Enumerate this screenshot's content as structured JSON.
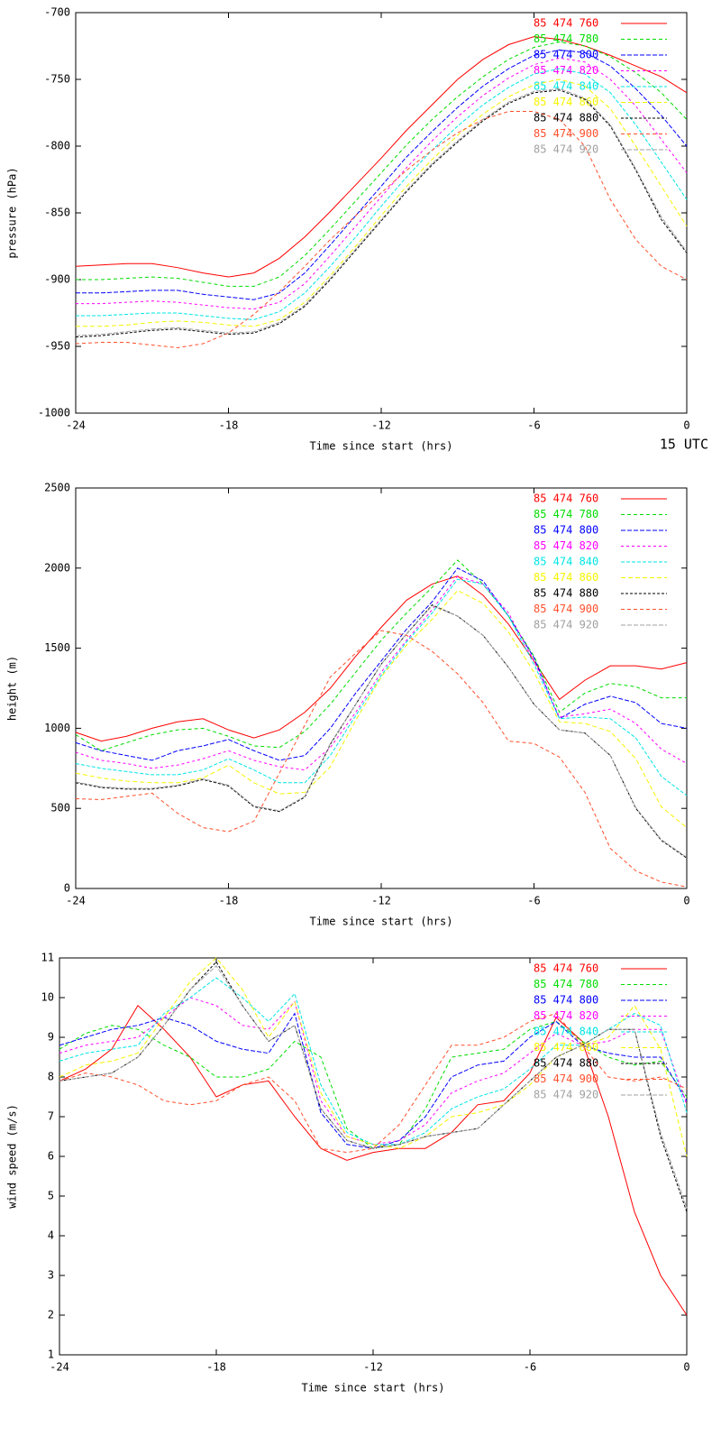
{
  "chart_data": [
    {
      "type": "line",
      "x_label": "Time since start (hrs)",
      "y_label": "pressure (hPa)",
      "annotation": "15 UTC",
      "legend": "top right",
      "xlim": [
        -24,
        0
      ],
      "ylim": [
        -1000,
        -700
      ],
      "xticks": [
        -24,
        -18,
        -12,
        -6,
        0
      ],
      "yticks": [
        -1000,
        -950,
        -900,
        -850,
        -800,
        -750,
        -700
      ],
      "x": [
        -24,
        -23,
        -22,
        -21,
        -20,
        -19,
        -18,
        -17,
        -16,
        -15,
        -14,
        -13,
        -12,
        -11,
        -10,
        -9,
        -8,
        -7,
        -6,
        -5,
        -4,
        -3,
        -2,
        -1,
        0
      ],
      "series": [
        {
          "name": "85 474 760",
          "color": "#ff0000",
          "values": [
            -890,
            -889,
            -888,
            -888,
            -891,
            -895,
            -898,
            -895,
            -884,
            -868,
            -849,
            -829,
            -809,
            -788,
            -769,
            -750,
            -735,
            -724,
            -718,
            -720,
            -725,
            -732,
            -740,
            -748,
            -760
          ]
        },
        {
          "name": "85 474 780",
          "color": "#00dd00",
          "values": [
            -900,
            -900,
            -899,
            -898,
            -899,
            -902,
            -905,
            -905,
            -898,
            -882,
            -862,
            -841,
            -820,
            -799,
            -780,
            -763,
            -748,
            -735,
            -726,
            -722,
            -725,
            -733,
            -745,
            -760,
            -780
          ]
        },
        {
          "name": "85 474 800",
          "color": "#0000ff",
          "values": [
            -910,
            -910,
            -909,
            -908,
            -908,
            -911,
            -913,
            -915,
            -910,
            -895,
            -874,
            -852,
            -830,
            -808,
            -789,
            -771,
            -755,
            -742,
            -732,
            -728,
            -730,
            -740,
            -757,
            -777,
            -800
          ]
        },
        {
          "name": "85 474 820",
          "color": "#ff00ff",
          "values": [
            -918,
            -918,
            -917,
            -916,
            -917,
            -919,
            -921,
            -922,
            -917,
            -903,
            -882,
            -860,
            -838,
            -816,
            -796,
            -778,
            -762,
            -749,
            -739,
            -734,
            -737,
            -750,
            -770,
            -795,
            -820
          ]
        },
        {
          "name": "85 474 840",
          "color": "#00e5e5",
          "values": [
            -927,
            -927,
            -926,
            -925,
            -925,
            -927,
            -929,
            -930,
            -924,
            -910,
            -890,
            -868,
            -845,
            -823,
            -803,
            -785,
            -769,
            -756,
            -746,
            -742,
            -746,
            -760,
            -784,
            -812,
            -840
          ]
        },
        {
          "name": "85 474 860",
          "color": "#f5f500",
          "values": [
            -935,
            -935,
            -934,
            -932,
            -931,
            -932,
            -934,
            -935,
            -930,
            -917,
            -897,
            -875,
            -852,
            -830,
            -810,
            -792,
            -776,
            -763,
            -754,
            -750,
            -755,
            -772,
            -800,
            -830,
            -860
          ]
        },
        {
          "name": "85 474 880",
          "color": "#000000",
          "values": [
            -943,
            -942,
            -940,
            -938,
            -937,
            -939,
            -941,
            -940,
            -933,
            -920,
            -900,
            -878,
            -856,
            -834,
            -814,
            -797,
            -781,
            -768,
            -760,
            -758,
            -765,
            -785,
            -818,
            -855,
            -880
          ]
        },
        {
          "name": "85 474 900",
          "color": "#ff4f2b",
          "values": [
            -948,
            -947,
            -947,
            -949,
            -951,
            -948,
            -940,
            -926,
            -909,
            -890,
            -870,
            -852,
            -835,
            -818,
            -803,
            -790,
            -780,
            -774,
            -774,
            -780,
            -800,
            -840,
            -870,
            -890,
            -900
          ]
        },
        {
          "name": "85 474 920",
          "color": "#a0a0a0",
          "values": [
            -942,
            -941,
            -939,
            -937,
            -936,
            -938,
            -940,
            -939,
            -932,
            -919,
            -899,
            -877,
            -855,
            -833,
            -813,
            -796,
            -780,
            -767,
            -759,
            -757,
            -764,
            -784,
            -817,
            -853,
            -879
          ]
        }
      ]
    },
    {
      "type": "line",
      "x_label": "Time since start (hrs)",
      "y_label": "height (m)",
      "legend": "top right",
      "xlim": [
        -24,
        0
      ],
      "ylim": [
        0,
        2500
      ],
      "xticks": [
        -24,
        -18,
        -12,
        -6,
        0
      ],
      "yticks": [
        0,
        500,
        1000,
        1500,
        2000,
        2500
      ],
      "x": [
        -24,
        -23,
        -22,
        -21,
        -20,
        -19,
        -18,
        -17,
        -16,
        -15,
        -14,
        -13,
        -12,
        -11,
        -10,
        -9,
        -8,
        -7,
        -6,
        -5,
        -4,
        -3,
        -2,
        -1,
        0
      ],
      "series": [
        {
          "name": "85 474 760",
          "color": "#ff0000",
          "values": [
            975,
            920,
            950,
            1000,
            1040,
            1060,
            990,
            940,
            990,
            1100,
            1250,
            1450,
            1630,
            1800,
            1900,
            1950,
            1830,
            1650,
            1420,
            1180,
            1300,
            1390,
            1390,
            1370,
            1410
          ]
        },
        {
          "name": "85 474 780",
          "color": "#00dd00",
          "values": [
            960,
            860,
            910,
            960,
            990,
            1000,
            950,
            890,
            880,
            980,
            1150,
            1350,
            1550,
            1720,
            1880,
            2050,
            1900,
            1700,
            1450,
            1100,
            1220,
            1280,
            1260,
            1190,
            1190
          ]
        },
        {
          "name": "85 474 800",
          "color": "#0000ff",
          "values": [
            910,
            860,
            830,
            800,
            860,
            890,
            930,
            860,
            800,
            830,
            1000,
            1220,
            1420,
            1620,
            1790,
            2000,
            1920,
            1700,
            1440,
            1060,
            1150,
            1200,
            1160,
            1030,
            1000
          ]
        },
        {
          "name": "85 474 820",
          "color": "#ff00ff",
          "values": [
            850,
            800,
            780,
            750,
            770,
            810,
            860,
            800,
            760,
            740,
            880,
            1100,
            1350,
            1550,
            1740,
            1950,
            1900,
            1720,
            1420,
            1070,
            1090,
            1120,
            1030,
            870,
            780
          ]
        },
        {
          "name": "85 474 840",
          "color": "#00e5e5",
          "values": [
            780,
            750,
            730,
            710,
            710,
            740,
            810,
            740,
            660,
            660,
            830,
            1080,
            1330,
            1540,
            1720,
            1930,
            1900,
            1700,
            1400,
            1060,
            1070,
            1060,
            940,
            700,
            580
          ]
        },
        {
          "name": "85 474 860",
          "color": "#f5f500",
          "values": [
            720,
            690,
            670,
            660,
            660,
            690,
            770,
            660,
            590,
            600,
            760,
            1050,
            1320,
            1520,
            1680,
            1860,
            1780,
            1600,
            1350,
            1040,
            1030,
            980,
            810,
            510,
            380
          ]
        },
        {
          "name": "85 474 880",
          "color": "#000000",
          "values": [
            660,
            630,
            620,
            620,
            640,
            680,
            640,
            510,
            480,
            570,
            900,
            1150,
            1400,
            1590,
            1770,
            1700,
            1580,
            1380,
            1150,
            990,
            970,
            830,
            500,
            300,
            190
          ]
        },
        {
          "name": "85 474 900",
          "color": "#ff4f2b",
          "values": [
            560,
            555,
            575,
            595,
            470,
            380,
            355,
            420,
            720,
            1020,
            1320,
            1470,
            1610,
            1580,
            1480,
            1340,
            1160,
            920,
            905,
            820,
            600,
            250,
            110,
            40,
            10
          ]
        },
        {
          "name": "85 474 920",
          "color": "#a0a0a0",
          "values": [
            665,
            635,
            625,
            625,
            645,
            685,
            645,
            515,
            485,
            575,
            905,
            1150,
            1400,
            1590,
            1765,
            1700,
            1580,
            1380,
            1150,
            990,
            970,
            830,
            505,
            305,
            195
          ]
        }
      ]
    },
    {
      "type": "line",
      "x_label": "Time since start (hrs)",
      "y_label": "wind speed (m/s)",
      "legend": "top right",
      "xlim": [
        -24,
        0
      ],
      "ylim": [
        1,
        11
      ],
      "xticks": [
        -24,
        -18,
        -12,
        -6,
        0
      ],
      "yticks": [
        1,
        2,
        3,
        4,
        5,
        6,
        7,
        8,
        9,
        10,
        11
      ],
      "x": [
        -24,
        -23,
        -22,
        -21,
        -20,
        -19,
        -18,
        -17,
        -16,
        -15,
        -14,
        -13,
        -12,
        -11,
        -10,
        -9,
        -8,
        -7,
        -6,
        -5,
        -4,
        -3,
        -2,
        -1,
        0
      ],
      "series": [
        {
          "name": "85 474 760",
          "color": "#ff0000",
          "values": [
            7.9,
            8.2,
            8.7,
            9.8,
            9.2,
            8.5,
            7.5,
            7.8,
            7.9,
            7.0,
            6.2,
            5.9,
            6.1,
            6.2,
            6.2,
            6.6,
            7.3,
            7.4,
            8.1,
            9.5,
            8.9,
            7.0,
            4.6,
            3.0,
            2.0
          ]
        },
        {
          "name": "85 474 780",
          "color": "#00dd00",
          "values": [
            8.7,
            9.1,
            9.3,
            9.2,
            8.8,
            8.5,
            8.0,
            8.0,
            8.2,
            8.9,
            8.5,
            6.7,
            6.2,
            6.3,
            7.2,
            8.5,
            8.6,
            8.7,
            9.2,
            9.4,
            8.9,
            8.5,
            8.3,
            8.4,
            7.5
          ]
        },
        {
          "name": "85 474 800",
          "color": "#0000ff",
          "values": [
            8.8,
            9.0,
            9.2,
            9.3,
            9.5,
            9.3,
            8.9,
            8.7,
            8.6,
            9.6,
            7.1,
            6.3,
            6.2,
            6.4,
            7.0,
            8.0,
            8.3,
            8.4,
            9.0,
            9.4,
            8.8,
            8.6,
            8.5,
            8.5,
            7.4
          ]
        },
        {
          "name": "85 474 820",
          "color": "#ff00ff",
          "values": [
            8.6,
            8.8,
            8.9,
            9.0,
            9.5,
            10.0,
            9.8,
            9.3,
            9.2,
            9.9,
            7.4,
            6.5,
            6.3,
            6.4,
            6.8,
            7.6,
            7.9,
            8.1,
            8.6,
            9.1,
            8.8,
            8.9,
            9.2,
            9.2,
            7.3
          ]
        },
        {
          "name": "85 474 840",
          "color": "#00e5e5",
          "values": [
            8.4,
            8.6,
            8.7,
            8.8,
            9.6,
            10.0,
            10.5,
            10.0,
            9.4,
            10.1,
            7.8,
            6.6,
            6.3,
            6.3,
            6.6,
            7.2,
            7.5,
            7.7,
            8.2,
            8.8,
            8.8,
            9.2,
            9.6,
            9.3,
            7.1
          ]
        },
        {
          "name": "85 474 860",
          "color": "#f5f500",
          "values": [
            8.0,
            8.3,
            8.4,
            8.6,
            9.5,
            10.4,
            11.0,
            10.2,
            9.0,
            9.9,
            7.6,
            6.5,
            6.3,
            6.2,
            6.5,
            7.0,
            7.1,
            7.3,
            7.8,
            8.5,
            8.8,
            9.0,
            9.8,
            8.7,
            6.0
          ]
        },
        {
          "name": "85 474 880",
          "color": "#000000",
          "values": [
            7.9,
            8.0,
            8.1,
            8.5,
            9.3,
            10.2,
            10.9,
            9.8,
            8.9,
            9.3,
            7.2,
            6.4,
            6.2,
            6.3,
            6.5,
            6.6,
            6.7,
            7.3,
            7.9,
            8.5,
            8.8,
            9.2,
            9.2,
            6.5,
            4.6
          ]
        },
        {
          "name": "85 474 900",
          "color": "#ff4f2b",
          "values": [
            7.9,
            8.1,
            8.0,
            7.8,
            7.4,
            7.3,
            7.4,
            7.8,
            8.0,
            7.4,
            6.2,
            6.1,
            6.2,
            6.8,
            7.8,
            8.8,
            8.8,
            9.0,
            9.4,
            9.6,
            8.8,
            8.0,
            7.9,
            8.0,
            7.7
          ]
        },
        {
          "name": "85 474 920",
          "color": "#a0a0a0",
          "values": [
            7.9,
            8.0,
            8.1,
            8.5,
            9.3,
            10.2,
            10.8,
            9.8,
            8.9,
            9.3,
            7.2,
            6.4,
            6.2,
            6.3,
            6.5,
            6.6,
            6.7,
            7.3,
            7.9,
            8.5,
            8.8,
            9.2,
            9.2,
            6.6,
            4.7
          ]
        }
      ]
    }
  ]
}
